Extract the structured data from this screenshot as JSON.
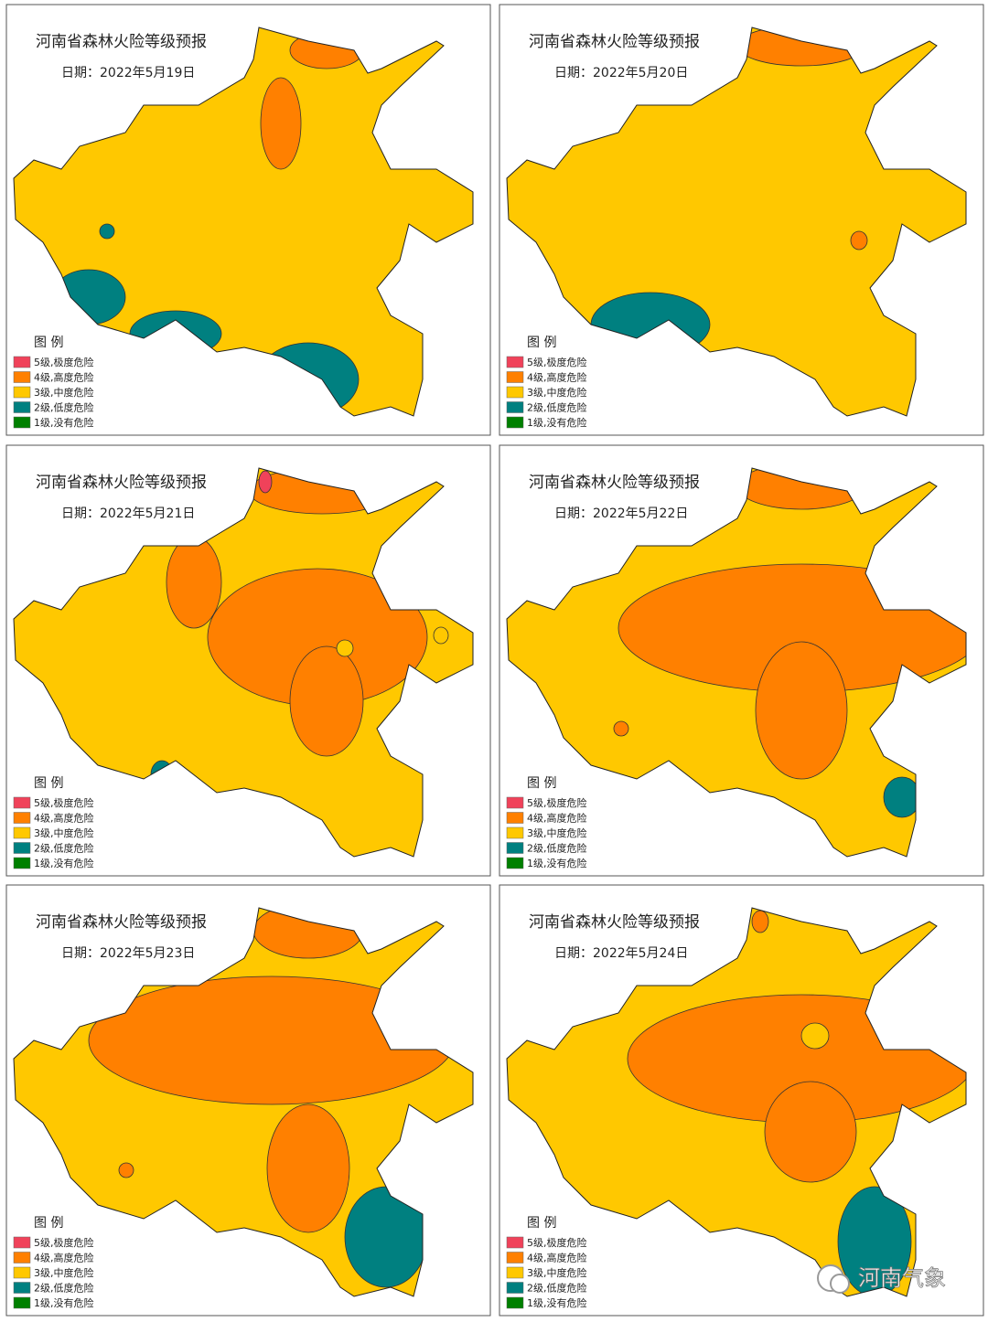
{
  "panels": [
    {
      "title": "河南省森林火险等级预报",
      "date": "日期：2022年5月19日"
    },
    {
      "title": "河南省森林火险等级预报",
      "date": "日期：2022年5月20日"
    },
    {
      "title": "河南省森林火险等级预报",
      "date": "日期：2022年5月21日"
    },
    {
      "title": "河南省森林火险等级预报",
      "date": "日期：2022年5月22日"
    },
    {
      "title": "河南省森林火险等级预报",
      "date": "日期：2022年5月23日"
    },
    {
      "title": "河南省森林火险等级预报",
      "date": "日期：2022年5月24日"
    }
  ],
  "legend": {
    "title": "图 例",
    "items": [
      {
        "label": "5级,极度危险",
        "color": "#f0425a"
      },
      {
        "label": "4级,高度危险",
        "color": "#ff8000"
      },
      {
        "label": "3级,中度危险",
        "color": "#ffc800"
      },
      {
        "label": "2级,低度危险",
        "color": "#008080"
      },
      {
        "label": "1级,没有危险",
        "color": "#008000"
      }
    ]
  },
  "watermark": "河南气象"
}
